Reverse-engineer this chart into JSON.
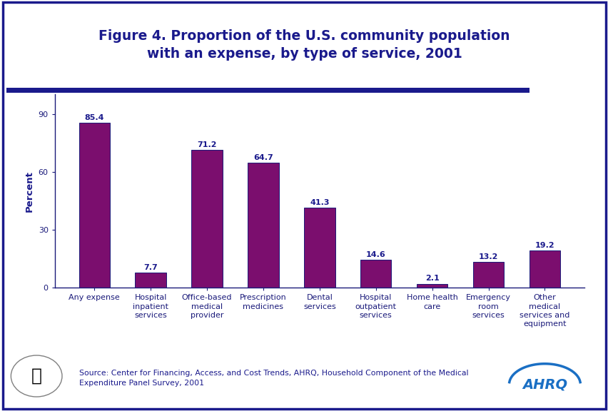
{
  "title": "Figure 4. Proportion of the U.S. community population\nwith an expense, by type of service, 2001",
  "categories": [
    "Any expense",
    "Hospital\ninpatient\nservices",
    "Office-based\nmedical\nprovider",
    "Prescription\nmedicines",
    "Dental\nservices",
    "Hospital\noutpatient\nservices",
    "Home health\ncare",
    "Emergency\nroom\nservices",
    "Other\nmedical\nservices and\nequipment"
  ],
  "values": [
    85.4,
    7.7,
    71.2,
    64.7,
    41.3,
    14.6,
    2.1,
    13.2,
    19.2
  ],
  "bar_color": "#7B0E6E",
  "bar_edge_color": "#1a1a7a",
  "ylabel": "Percent",
  "yticks": [
    0,
    30,
    60,
    90
  ],
  "ylim": [
    0,
    100
  ],
  "title_color": "#1a1a8c",
  "axis_color": "#1a1a7a",
  "label_color": "#1a1a8c",
  "tick_label_color": "#1a1a8c",
  "source_text": "Source: Center for Financing, Access, and Cost Trends, AHRQ, Household Component of the Medical\nExpenditure Panel Survey, 2001",
  "source_color": "#1a1a8c",
  "border_color": "#1a1a8c",
  "separator_color": "#1a1a8c",
  "background_color": "#FFFFFF",
  "title_fontsize": 13.5,
  "label_fontsize": 8.0,
  "value_fontsize": 8.0,
  "ylabel_fontsize": 9.5,
  "source_fontsize": 7.8,
  "bar_width": 0.55
}
